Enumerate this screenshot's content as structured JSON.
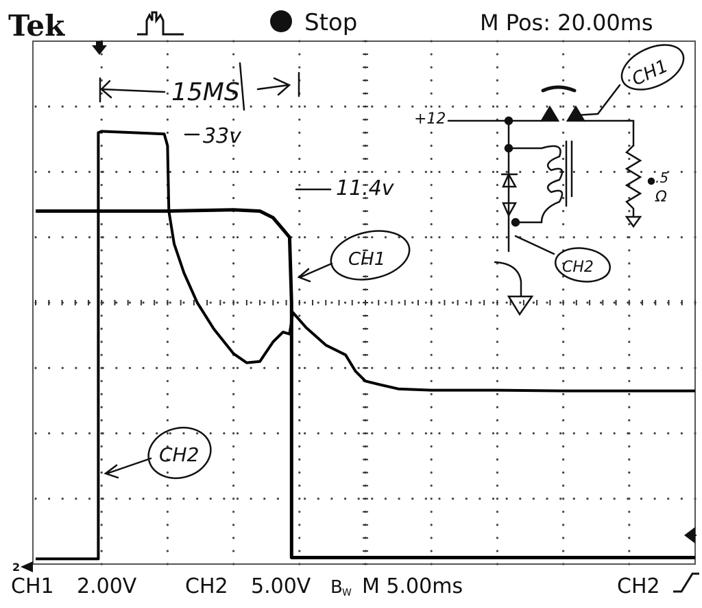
{
  "header": {
    "brand": "Tek",
    "status": "Stop",
    "mpos": "M Pos: 20.00ms"
  },
  "footer": {
    "ch1_label": "CH1",
    "ch1_scale": "2.00V",
    "ch2_label": "CH2",
    "ch2_scale": "5.00V",
    "bw_mark": "B",
    "bw_sub": "W",
    "timebase": "M 5.00ms",
    "trigger_source": "CH2"
  },
  "annotations": {
    "span": "15MS",
    "v33": "33v",
    "v114": "11.4v",
    "ch1_callout": "CH1",
    "ch2_callout": "CH2",
    "plus12": "+12",
    "ch1_schematic": "CH1",
    "ch2_schematic": "CH2",
    "res_value": ".5",
    "res_unit": "Ω"
  },
  "chart_data": {
    "type": "line",
    "x_unit": "ms",
    "x_per_div": 5,
    "x_divisions": 10,
    "y_divisions": 8,
    "grid": true,
    "series": [
      {
        "name": "CH1",
        "volts_per_div": 2.0,
        "points_div": [
          [
            0.0,
            5.4
          ],
          [
            1.0,
            5.4
          ],
          [
            2.0,
            5.4
          ],
          [
            3.0,
            5.42
          ],
          [
            3.4,
            5.4
          ],
          [
            3.6,
            5.3
          ],
          [
            3.75,
            5.12
          ],
          [
            3.85,
            5.0
          ],
          [
            3.88,
            4.0
          ],
          [
            3.88,
            2.0
          ],
          [
            3.88,
            0.1
          ],
          [
            10.0,
            0.1
          ]
        ]
      },
      {
        "name": "CH2",
        "volts_per_div": 5.0,
        "points_div": [
          [
            0.0,
            0.08
          ],
          [
            0.95,
            0.08
          ],
          [
            0.95,
            6.6
          ],
          [
            1.0,
            6.62
          ],
          [
            1.5,
            6.6
          ],
          [
            1.95,
            6.58
          ],
          [
            2.0,
            6.4
          ],
          [
            2.02,
            5.4
          ],
          [
            2.1,
            4.9
          ],
          [
            2.25,
            4.45
          ],
          [
            2.45,
            4.0
          ],
          [
            2.7,
            3.6
          ],
          [
            3.0,
            3.22
          ],
          [
            3.2,
            3.08
          ],
          [
            3.4,
            3.1
          ],
          [
            3.6,
            3.4
          ],
          [
            3.75,
            3.55
          ],
          [
            3.85,
            3.52
          ],
          [
            3.9,
            3.85
          ],
          [
            4.1,
            3.62
          ],
          [
            4.4,
            3.35
          ],
          [
            4.7,
            3.2
          ],
          [
            4.85,
            2.95
          ],
          [
            5.0,
            2.8
          ],
          [
            5.2,
            2.75
          ],
          [
            5.5,
            2.68
          ],
          [
            6.0,
            2.66
          ],
          [
            7.0,
            2.66
          ],
          [
            8.0,
            2.65
          ],
          [
            10.0,
            2.65
          ]
        ]
      }
    ],
    "annotations": [
      {
        "label": "15MS"
      },
      {
        "label": "33v"
      },
      {
        "label": "11.4v"
      }
    ]
  }
}
